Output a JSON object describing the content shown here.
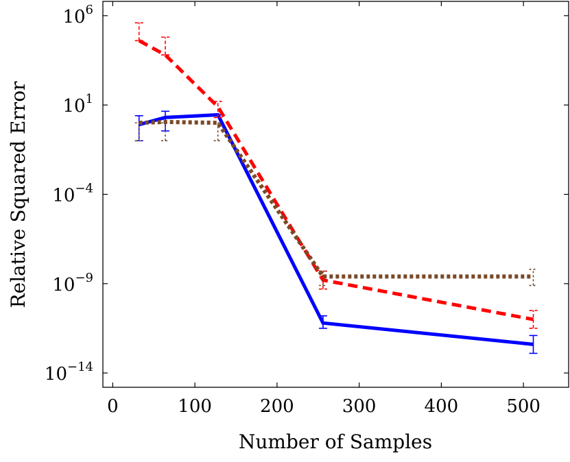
{
  "chart_data": {
    "type": "line",
    "xlabel": "Number of Samples",
    "ylabel": "Relative Squared Error",
    "yscale": "log",
    "xlim": [
      -12,
      555
    ],
    "ylim_exp": [
      -14.8,
      6.8
    ],
    "x_ticks": [
      0,
      100,
      200,
      300,
      400,
      500
    ],
    "y_ticks": [
      {
        "base": "10",
        "exp": "6",
        "value": 6
      },
      {
        "base": "10",
        "exp": "1",
        "value": 1
      },
      {
        "base": "10",
        "exp": "−4",
        "value": -4
      },
      {
        "base": "10",
        "exp": "−9",
        "value": -9
      },
      {
        "base": "10",
        "exp": "−14",
        "value": -14
      }
    ],
    "grid": false,
    "series": [
      {
        "color": "#0000ff",
        "style": "solid",
        "points": [
          {
            "x": 32,
            "y_exp": -0.1,
            "err_lo": -1.0,
            "err_hi": 0.4
          },
          {
            "x": 64,
            "y_exp": 0.3,
            "err_lo": -0.45,
            "err_hi": 0.65
          },
          {
            "x": 128,
            "y_exp": 0.45,
            "err_lo": 0.45,
            "err_hi": 0.45
          },
          {
            "x": 256,
            "y_exp": -11.2,
            "err_lo": -11.5,
            "err_hi": -10.8
          },
          {
            "x": 512,
            "y_exp": -12.4,
            "err_lo": -12.9,
            "err_hi": -11.9
          }
        ]
      },
      {
        "color": "#ff0000",
        "style": "dashed",
        "points": [
          {
            "x": 32,
            "y_exp": 4.6,
            "err_lo": 4.6,
            "err_hi": 5.6
          },
          {
            "x": 64,
            "y_exp": 3.8,
            "err_lo": 3.8,
            "err_hi": 4.8
          },
          {
            "x": 128,
            "y_exp": 0.9,
            "err_lo": 0.3,
            "err_hi": 1.2
          },
          {
            "x": 256,
            "y_exp": -8.8,
            "err_lo": -9.3,
            "err_hi": -8.3
          },
          {
            "x": 512,
            "y_exp": -11.0,
            "err_lo": -11.5,
            "err_hi": -10.5
          }
        ]
      },
      {
        "color": "#7a4a28",
        "style": "dotted",
        "points": [
          {
            "x": 32,
            "y_exp": 0.0,
            "err_lo": -1.0,
            "err_hi": 0.0
          },
          {
            "x": 64,
            "y_exp": 0.05,
            "err_lo": -1.0,
            "err_hi": 0.0
          },
          {
            "x": 128,
            "y_exp": 0.0,
            "err_lo": -1.0,
            "err_hi": 0.0
          },
          {
            "x": 256,
            "y_exp": -8.6,
            "err_lo": -9.1,
            "err_hi": -8.3
          },
          {
            "x": 512,
            "y_exp": -8.6,
            "err_lo": -9.1,
            "err_hi": -8.2
          }
        ]
      }
    ]
  }
}
